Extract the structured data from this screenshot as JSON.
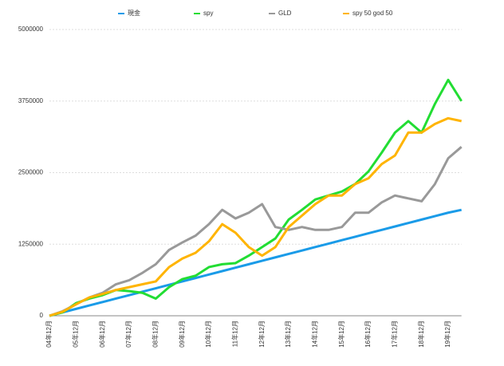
{
  "chart_data": {
    "type": "line",
    "categories": [
      "04年12月",
      null,
      "05年12月",
      null,
      "06年12月",
      null,
      "07年12月",
      null,
      "08年12月",
      null,
      "09年12月",
      null,
      "10年12月",
      null,
      "11年12月",
      null,
      "12年12月",
      null,
      "13年12月",
      null,
      "14年12月",
      null,
      "15年12月",
      null,
      "16年12月",
      null,
      "17年12月",
      null,
      "18年12月",
      null,
      "19年12月",
      null
    ],
    "series": [
      {
        "name": "現金",
        "color": "#1a9be8",
        "values": [
          0,
          60000,
          120000,
          180000,
          240000,
          300000,
          360000,
          420000,
          480000,
          540000,
          600000,
          660000,
          720000,
          780000,
          840000,
          900000,
          960000,
          1020000,
          1080000,
          1140000,
          1200000,
          1260000,
          1320000,
          1380000,
          1440000,
          1500000,
          1560000,
          1620000,
          1680000,
          1740000,
          1800000,
          1850000
        ]
      },
      {
        "name": "spy",
        "color": "#22dd33",
        "values": [
          0,
          60000,
          220000,
          300000,
          360000,
          450000,
          430000,
          400000,
          300000,
          500000,
          640000,
          700000,
          850000,
          900000,
          920000,
          1050000,
          1200000,
          1350000,
          1680000,
          1850000,
          2030000,
          2100000,
          2170000,
          2300000,
          2520000,
          2850000,
          3200000,
          3400000,
          3200000,
          3700000,
          4120000,
          3750000
        ]
      },
      {
        "name": "GLD",
        "color": "#999999",
        "values": [
          0,
          80000,
          200000,
          320000,
          400000,
          550000,
          620000,
          750000,
          900000,
          1150000,
          1280000,
          1400000,
          1600000,
          1850000,
          1700000,
          1800000,
          1950000,
          1550000,
          1500000,
          1550000,
          1500000,
          1500000,
          1550000,
          1800000,
          1800000,
          1980000,
          2100000,
          2050000,
          2000000,
          2300000,
          2750000,
          2950000
        ]
      },
      {
        "name": "spy 50 god 50",
        "color": "#ffb400",
        "values": [
          0,
          70000,
          200000,
          320000,
          380000,
          450000,
          500000,
          550000,
          600000,
          850000,
          1000000,
          1100000,
          1300000,
          1600000,
          1450000,
          1200000,
          1050000,
          1200000,
          1550000,
          1750000,
          1950000,
          2100000,
          2100000,
          2300000,
          2400000,
          2650000,
          2800000,
          3200000,
          3200000,
          3350000,
          3450000,
          3400000
        ]
      }
    ],
    "ylim": [
      0,
      5000000
    ],
    "yticks": [
      0,
      1250000,
      2500000,
      3750000,
      5000000
    ],
    "grid": true,
    "legend": "top"
  }
}
